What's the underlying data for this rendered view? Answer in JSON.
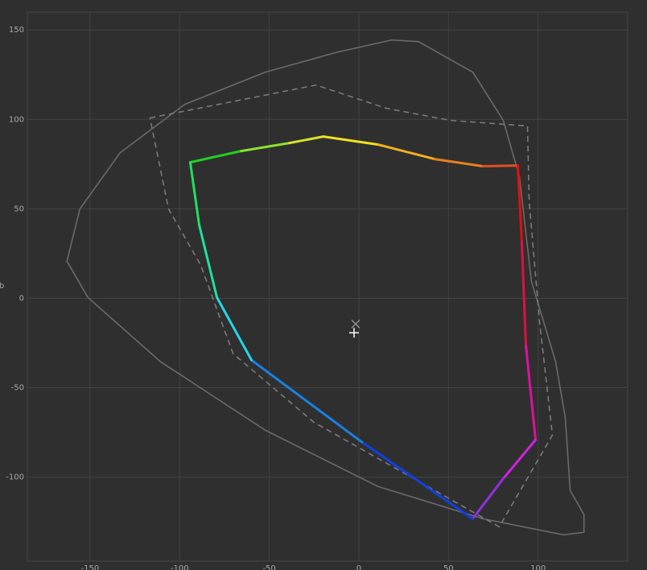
{
  "chart_data": {
    "type": "line",
    "ylabel": "b",
    "xlim": [
      -185,
      150
    ],
    "ylim": [
      -147,
      160
    ],
    "xticks": [
      -150,
      -100,
      -50,
      0,
      50,
      100
    ],
    "yticks": [
      -100,
      -50,
      0,
      50,
      100,
      150
    ],
    "grid": true,
    "series": [
      {
        "color": "#6a6a6a",
        "closed": true,
        "x": [
          -162.9,
          -155.7,
          -133.2,
          -97.2,
          -52.2,
          -11.7,
          18.5,
          33.3,
          63.6,
          80.6,
          89.6,
          96.3,
          109.8,
          115.2,
          117.9,
          125.6,
          125.6,
          114.3,
          69.3,
          10.8,
          -52.2,
          -110.7,
          -151.2
        ],
        "values": [
          20.7,
          49.9,
          81.4,
          108.4,
          126.4,
          137.7,
          144.4,
          143.5,
          126.4,
          99.4,
          67.9,
          9.4,
          -35.5,
          -67,
          -107.5,
          -121,
          -130.9,
          -132.3,
          -123.3,
          -105.3,
          -73.8,
          -35.5,
          0.4
        ]
      },
      {
        "color": "#7a7a7a",
        "closed": true,
        "dash": true,
        "x": [
          -116.6,
          -23.9,
          15.3,
          51.3,
          94.1,
          95,
          100.8,
          108,
          78.3,
          -25.2,
          -70.2,
          -88.2,
          -106.2
        ],
        "values": [
          100.8,
          119.2,
          106.2,
          99.4,
          96.3,
          54.4,
          -13,
          -76.5,
          -127.8,
          -69.3,
          -31,
          18.4,
          49.9
        ]
      },
      {
        "closed": true,
        "colors": [
          "#22d022",
          "#8ee030",
          "#d8e030",
          "#f0e020",
          "#f0b020",
          "#e88020",
          "#e05020",
          "#e01010",
          "#e01040",
          "#e010a0",
          "#d020e0",
          "#9030e0",
          "#1040e0",
          "#1a80e0",
          "#20d8e8",
          "#20e0a0",
          "#20e060"
        ],
        "x": [
          -94.1,
          -65.7,
          -38.7,
          -19.8,
          10.8,
          42.3,
          69.3,
          88.7,
          90.9,
          93.2,
          98.6,
          80.6,
          63.5,
          1.8,
          -59.9,
          -79.2,
          -89.1
        ],
        "values": [
          76.0,
          82.3,
          86.8,
          90.4,
          85.9,
          77.8,
          73.8,
          74.2,
          31.9,
          -26.5,
          -79.2,
          -100.8,
          -123.3,
          -80.5,
          -34.6,
          0.4,
          40.9
        ]
      },
      {
        "color": "#8a8a8a",
        "marker": "x",
        "x": [
          -1.8
        ],
        "values": [
          -14.4
        ]
      },
      {
        "color": "#ffffff",
        "marker": "+",
        "x": [
          -2.7
        ],
        "values": [
          -19.3
        ]
      }
    ]
  }
}
